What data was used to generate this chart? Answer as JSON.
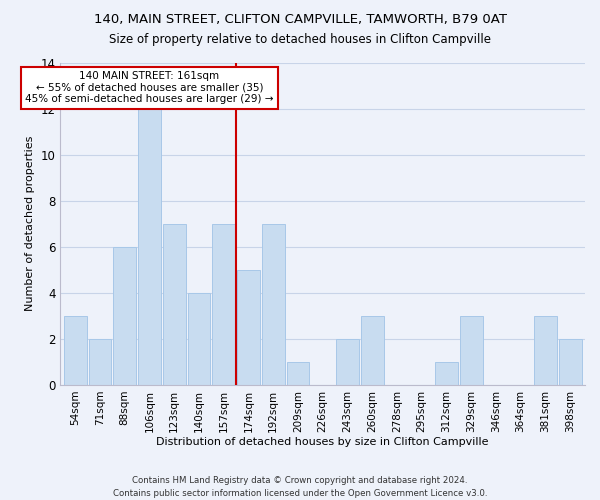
{
  "title": "140, MAIN STREET, CLIFTON CAMPVILLE, TAMWORTH, B79 0AT",
  "subtitle": "Size of property relative to detached houses in Clifton Campville",
  "xlabel": "Distribution of detached houses by size in Clifton Campville",
  "ylabel": "Number of detached properties",
  "bin_labels": [
    "54sqm",
    "71sqm",
    "88sqm",
    "106sqm",
    "123sqm",
    "140sqm",
    "157sqm",
    "174sqm",
    "192sqm",
    "209sqm",
    "226sqm",
    "243sqm",
    "260sqm",
    "278sqm",
    "295sqm",
    "312sqm",
    "329sqm",
    "346sqm",
    "364sqm",
    "381sqm",
    "398sqm"
  ],
  "bin_values": [
    3,
    2,
    6,
    12,
    7,
    4,
    7,
    5,
    7,
    1,
    0,
    2,
    3,
    0,
    0,
    1,
    3,
    0,
    0,
    3,
    2
  ],
  "bar_color": "#c8dcf0",
  "bar_edge_color": "#a8c8e8",
  "vline_x_bin": 6.5,
  "vline_color": "#cc0000",
  "annotation_line1": "140 MAIN STREET: 161sqm",
  "annotation_line2": "← 55% of detached houses are smaller (35)",
  "annotation_line3": "45% of semi-detached houses are larger (29) →",
  "annotation_box_color": "#ffffff",
  "annotation_box_edge": "#cc0000",
  "ylim": [
    0,
    14
  ],
  "yticks": [
    0,
    2,
    4,
    6,
    8,
    10,
    12,
    14
  ],
  "footer": "Contains HM Land Registry data © Crown copyright and database right 2024.\nContains public sector information licensed under the Open Government Licence v3.0.",
  "bg_color": "#eef2fa",
  "grid_color": "#c8d4e8"
}
